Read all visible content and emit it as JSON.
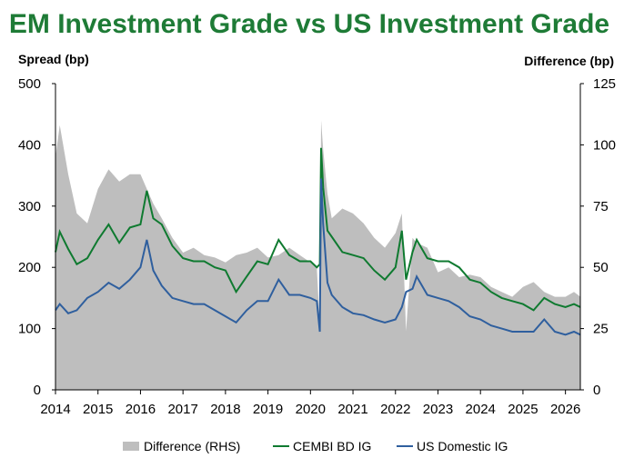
{
  "chart_data": {
    "type": "line",
    "title": "EM Investment Grade vs US Investment Grade",
    "ylabel_left": "Spread (bp)",
    "ylabel_right": "Difference (bp)",
    "ylim_left": [
      0,
      500
    ],
    "ylim_right": [
      0,
      125
    ],
    "yticks_left": [
      "0",
      "100",
      "200",
      "300",
      "400",
      "500"
    ],
    "yticks_right": [
      "0",
      "25",
      "50",
      "75",
      "100",
      "125"
    ],
    "x_range": [
      2014.0,
      2026.35
    ],
    "xticks": [
      "2014",
      "2015",
      "2016",
      "2017",
      "2018",
      "2019",
      "2020",
      "2021",
      "2022",
      "2023",
      "2024",
      "2025",
      "2026"
    ],
    "grid": false,
    "legend_position": "bottom",
    "colors": {
      "title": "#1E7B36",
      "cembi": "#0F7A30",
      "us": "#2F5F9E",
      "difference": "#BEBEBE"
    },
    "series": [
      {
        "name": "Difference (RHS)",
        "axis": "right",
        "style": "area",
        "x": [
          2014.0,
          2014.1,
          2014.3,
          2014.5,
          2014.75,
          2015.0,
          2015.25,
          2015.5,
          2015.75,
          2016.0,
          2016.15,
          2016.3,
          2016.5,
          2016.75,
          2017.0,
          2017.25,
          2017.5,
          2017.75,
          2018.0,
          2018.25,
          2018.5,
          2018.75,
          2019.0,
          2019.25,
          2019.5,
          2019.75,
          2020.0,
          2020.15,
          2020.22,
          2020.25,
          2020.3,
          2020.4,
          2020.5,
          2020.75,
          2021.0,
          2021.25,
          2021.5,
          2021.75,
          2022.0,
          2022.15,
          2022.25,
          2022.4,
          2022.5,
          2022.75,
          2023.0,
          2023.25,
          2023.5,
          2023.75,
          2024.0,
          2024.25,
          2024.5,
          2024.75,
          2025.0,
          2025.25,
          2025.5,
          2025.75,
          2026.0,
          2026.2,
          2026.35
        ],
        "values": [
          95,
          108,
          88,
          72,
          68,
          82,
          90,
          85,
          88,
          88,
          82,
          76,
          70,
          62,
          56,
          58,
          55,
          54,
          52,
          55,
          56,
          58,
          54,
          55,
          58,
          55,
          52,
          50,
          26,
          110,
          98,
          80,
          70,
          74,
          72,
          68,
          62,
          58,
          64,
          72,
          24,
          62,
          60,
          58,
          48,
          50,
          46,
          47,
          46,
          42,
          40,
          38,
          42,
          44,
          40,
          38,
          38,
          40,
          38
        ]
      },
      {
        "name": "CEMBI BD IG",
        "axis": "left",
        "style": "line",
        "x": [
          2014.0,
          2014.1,
          2014.3,
          2014.5,
          2014.75,
          2015.0,
          2015.25,
          2015.5,
          2015.75,
          2016.0,
          2016.15,
          2016.3,
          2016.5,
          2016.75,
          2017.0,
          2017.25,
          2017.5,
          2017.75,
          2018.0,
          2018.25,
          2018.5,
          2018.75,
          2019.0,
          2019.25,
          2019.5,
          2019.75,
          2020.0,
          2020.15,
          2020.22,
          2020.25,
          2020.3,
          2020.4,
          2020.5,
          2020.75,
          2021.0,
          2021.25,
          2021.5,
          2021.75,
          2022.0,
          2022.15,
          2022.25,
          2022.4,
          2022.5,
          2022.75,
          2023.0,
          2023.25,
          2023.5,
          2023.75,
          2024.0,
          2024.25,
          2024.5,
          2024.75,
          2025.0,
          2025.25,
          2025.5,
          2025.75,
          2026.0,
          2026.2,
          2026.35
        ],
        "values": [
          225,
          258,
          230,
          205,
          215,
          245,
          270,
          240,
          265,
          270,
          325,
          280,
          270,
          235,
          215,
          210,
          210,
          200,
          195,
          160,
          185,
          210,
          205,
          245,
          220,
          210,
          210,
          200,
          205,
          395,
          330,
          260,
          250,
          225,
          220,
          215,
          195,
          180,
          200,
          260,
          180,
          225,
          245,
          215,
          210,
          210,
          200,
          180,
          175,
          160,
          150,
          145,
          140,
          130,
          150,
          140,
          135,
          140,
          135
        ]
      },
      {
        "name": "US Domestic IG",
        "axis": "left",
        "style": "line",
        "x": [
          2014.0,
          2014.1,
          2014.3,
          2014.5,
          2014.75,
          2015.0,
          2015.25,
          2015.5,
          2015.75,
          2016.0,
          2016.15,
          2016.3,
          2016.5,
          2016.75,
          2017.0,
          2017.25,
          2017.5,
          2017.75,
          2018.0,
          2018.25,
          2018.5,
          2018.75,
          2019.0,
          2019.25,
          2019.5,
          2019.75,
          2020.0,
          2020.15,
          2020.22,
          2020.25,
          2020.3,
          2020.4,
          2020.5,
          2020.75,
          2021.0,
          2021.25,
          2021.5,
          2021.75,
          2022.0,
          2022.15,
          2022.25,
          2022.4,
          2022.5,
          2022.75,
          2023.0,
          2023.25,
          2023.5,
          2023.75,
          2024.0,
          2024.25,
          2024.5,
          2024.75,
          2025.0,
          2025.25,
          2025.5,
          2025.75,
          2026.0,
          2026.2,
          2026.35
        ],
        "values": [
          130,
          140,
          125,
          130,
          150,
          160,
          175,
          165,
          180,
          200,
          245,
          195,
          170,
          150,
          145,
          140,
          140,
          130,
          120,
          110,
          130,
          145,
          145,
          180,
          155,
          155,
          150,
          145,
          95,
          345,
          270,
          175,
          155,
          135,
          125,
          122,
          115,
          110,
          115,
          135,
          160,
          165,
          185,
          155,
          150,
          145,
          135,
          120,
          115,
          105,
          100,
          95,
          95,
          95,
          115,
          95,
          90,
          95,
          90
        ]
      }
    ]
  }
}
